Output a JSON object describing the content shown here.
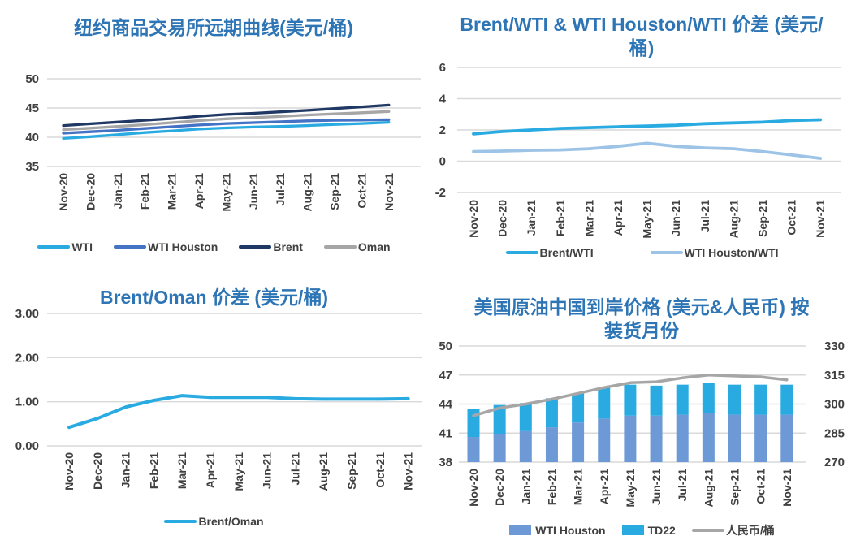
{
  "page": {
    "background": "#FFFFFF",
    "title_color": "#2E75B6",
    "axis_text_color": "#404040",
    "gridline_color": "#D9D9D9"
  },
  "chart_data": [
    {
      "id": "nymex-forward-curve",
      "type": "line",
      "title": "纽约商品交易所远期曲线(美元/桶)",
      "categories": [
        "Nov-20",
        "Dec-20",
        "Jan-21",
        "Feb-21",
        "Mar-21",
        "Apr-21",
        "May-21",
        "Jun-21",
        "Jul-21",
        "Aug-21",
        "Sep-21",
        "Oct-21",
        "Nov-21"
      ],
      "ylim": [
        35,
        50
      ],
      "yticks": [
        "50",
        "45",
        "40",
        "35"
      ],
      "grid": true,
      "legend_position": "bottom",
      "series": [
        {
          "name": "WTI",
          "color": "#29ABE2",
          "swatch": "line",
          "values": [
            39.8,
            40.1,
            40.45,
            40.8,
            41.1,
            41.4,
            41.6,
            41.75,
            41.85,
            42.0,
            42.2,
            42.35,
            42.55
          ]
        },
        {
          "name": "WTI Houston",
          "color": "#4472C4",
          "swatch": "line",
          "values": [
            40.7,
            40.95,
            41.2,
            41.5,
            41.8,
            42.1,
            42.35,
            42.5,
            42.65,
            42.8,
            42.9,
            42.95,
            43.0
          ]
        },
        {
          "name": "Brent",
          "color": "#203864",
          "swatch": "line",
          "values": [
            42.0,
            42.3,
            42.6,
            42.9,
            43.2,
            43.6,
            43.9,
            44.1,
            44.35,
            44.6,
            44.9,
            45.2,
            45.5
          ]
        },
        {
          "name": "Oman",
          "color": "#A6A6A6",
          "swatch": "line",
          "values": [
            41.3,
            41.55,
            41.85,
            42.15,
            42.5,
            42.85,
            43.15,
            43.35,
            43.55,
            43.8,
            44.0,
            44.2,
            44.4
          ]
        }
      ]
    },
    {
      "id": "brent-wti-spread",
      "type": "line",
      "title": "Brent/WTI & WTI Houston/WTI 价差 (美元/桶)",
      "categories": [
        "Nov-20",
        "Dec-20",
        "Jan-21",
        "Feb-21",
        "Mar-21",
        "Apr-21",
        "May-21",
        "Jun-21",
        "Jul-21",
        "Aug-21",
        "Sep-21",
        "Oct-21",
        "Nov-21"
      ],
      "ylim": [
        -2,
        6
      ],
      "yticks": [
        "6",
        "4",
        "2",
        "0",
        "-2"
      ],
      "grid": true,
      "legend_position": "bottom",
      "series": [
        {
          "name": "Brent/WTI",
          "color": "#29ABE2",
          "swatch": "line",
          "values": [
            1.75,
            1.9,
            2.0,
            2.1,
            2.15,
            2.2,
            2.25,
            2.3,
            2.4,
            2.45,
            2.5,
            2.6,
            2.65
          ]
        },
        {
          "name": "WTI Houston/WTI",
          "color": "#9DC3E6",
          "swatch": "line",
          "values": [
            0.62,
            0.65,
            0.7,
            0.72,
            0.8,
            0.95,
            1.15,
            0.95,
            0.85,
            0.8,
            0.62,
            0.4,
            0.18
          ]
        }
      ]
    },
    {
      "id": "brent-oman-spread",
      "type": "line",
      "title": "Brent/Oman 价差 (美元/桶)",
      "categories": [
        "Nov-20",
        "Dec-20",
        "Jan-21",
        "Feb-21",
        "Mar-21",
        "Apr-21",
        "May-21",
        "Jun-21",
        "Jul-21",
        "Aug-21",
        "Sep-21",
        "Oct-21",
        "Nov-21"
      ],
      "ylim": [
        0,
        3
      ],
      "yticks": [
        "3.00",
        "2.00",
        "1.00",
        "0.00"
      ],
      "grid": true,
      "legend_position": "bottom",
      "series": [
        {
          "name": "Brent/Oman",
          "color": "#29ABE2",
          "swatch": "line",
          "values": [
            0.42,
            0.62,
            0.88,
            1.03,
            1.14,
            1.1,
            1.1,
            1.1,
            1.07,
            1.06,
            1.06,
            1.06,
            1.07
          ]
        }
      ]
    },
    {
      "id": "us-crude-cif-china",
      "type": "stacked-bar-line",
      "title": "美国原油中国到岸价格 (美元&人民币) 按装货月份",
      "categories": [
        "Nov-20",
        "Dec-20",
        "Jan-21",
        "Feb-21",
        "Mar-21",
        "Apr-21",
        "May-21",
        "Jun-21",
        "Jul-21",
        "Aug-21",
        "Sep-21",
        "Oct-21",
        "Nov-21"
      ],
      "ylim": [
        38,
        50
      ],
      "yticks": [
        "50",
        "47",
        "44",
        "41",
        "38"
      ],
      "ylim_right": [
        270,
        330
      ],
      "yticks_right": [
        "330",
        "315",
        "300",
        "285",
        "270"
      ],
      "grid": true,
      "legend_position": "bottom",
      "series": [
        {
          "name": "WTI Houston",
          "axis": "left",
          "kind": "bar",
          "color": "#6D9AD6",
          "swatch": "bar",
          "values": [
            40.6,
            40.9,
            41.2,
            41.6,
            42.1,
            42.5,
            42.8,
            42.8,
            42.9,
            43.1,
            42.9,
            42.9,
            42.9
          ]
        },
        {
          "name": "TD22",
          "axis": "left",
          "kind": "bar",
          "color": "#29ABE2",
          "swatch": "bar",
          "values": [
            2.9,
            3.0,
            2.9,
            3.0,
            3.0,
            3.2,
            3.2,
            3.1,
            3.1,
            3.1,
            3.1,
            3.1,
            3.1
          ]
        },
        {
          "name": "人民币/桶",
          "axis": "right",
          "kind": "line",
          "color": "#A6A6A6",
          "swatch": "line",
          "values": [
            294,
            298,
            300,
            302.5,
            305.5,
            308.5,
            311,
            311.5,
            313.5,
            315,
            314.5,
            314,
            312.5
          ]
        }
      ],
      "stacked": true
    }
  ]
}
